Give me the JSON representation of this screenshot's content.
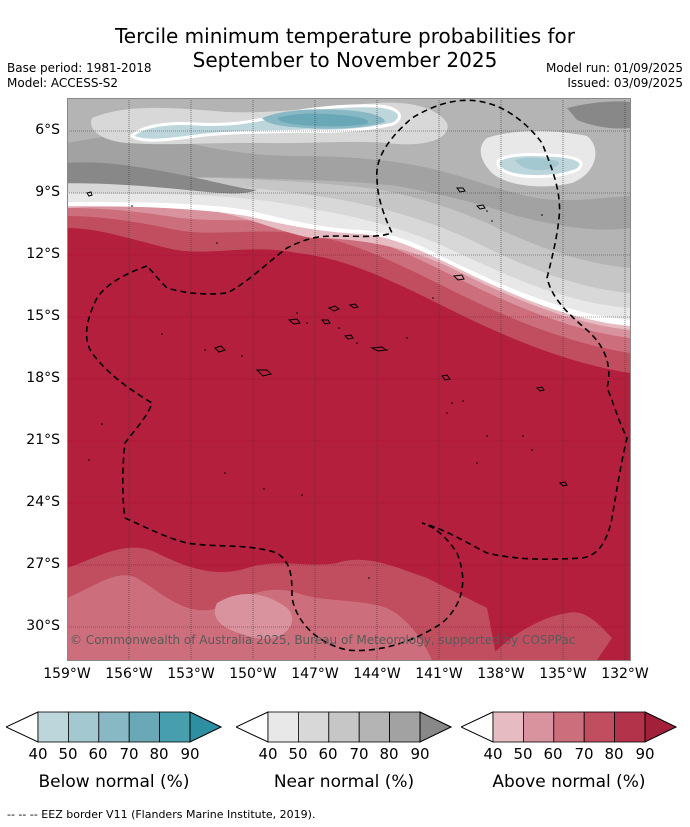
{
  "title_line1": "Tercile minimum temperature probabilities for",
  "title_line2": "September to November 2025",
  "meta": {
    "base_period": "Base period: 1981-2018",
    "model": "Model: ACCESS-S2",
    "model_run": "Model run: 01/09/2025",
    "issued": "Issued: 03/09/2025"
  },
  "map": {
    "lat_ticks": [
      "6°S",
      "9°S",
      "12°S",
      "15°S",
      "18°S",
      "21°S",
      "24°S",
      "27°S",
      "30°S"
    ],
    "lon_ticks": [
      "159°W",
      "156°W",
      "153°W",
      "150°W",
      "147°W",
      "144°W",
      "141°W",
      "138°W",
      "135°W",
      "132°W"
    ],
    "copyright": "© Commonwealth of Australia 2025, Bureau of Meteorology, supported by COSPPac"
  },
  "legend": [
    {
      "label": "Below normal (%)",
      "ticks": [
        "40",
        "50",
        "60",
        "70",
        "80",
        "90"
      ],
      "colors": [
        "#bdd6dc",
        "#a4c8d0",
        "#88b8c3",
        "#6aa8b7",
        "#479fae",
        "#2e8fa3"
      ]
    },
    {
      "label": "Near normal (%)",
      "ticks": [
        "40",
        "50",
        "60",
        "70",
        "80",
        "90"
      ],
      "colors": [
        "#e8e8e8",
        "#d8d8d8",
        "#c6c6c6",
        "#b4b4b4",
        "#a2a2a2",
        "#888888"
      ]
    },
    {
      "label": "Above normal (%)",
      "ticks": [
        "40",
        "50",
        "60",
        "70",
        "80",
        "90"
      ],
      "colors": [
        "#e6bcc2",
        "#d9939e",
        "#cc6e7c",
        "#c04e5f",
        "#b3344a",
        "#a3203a"
      ]
    }
  ],
  "footnote": "--  --  -- EEZ border V11 (Flanders Marine Institute, 2019)."
}
